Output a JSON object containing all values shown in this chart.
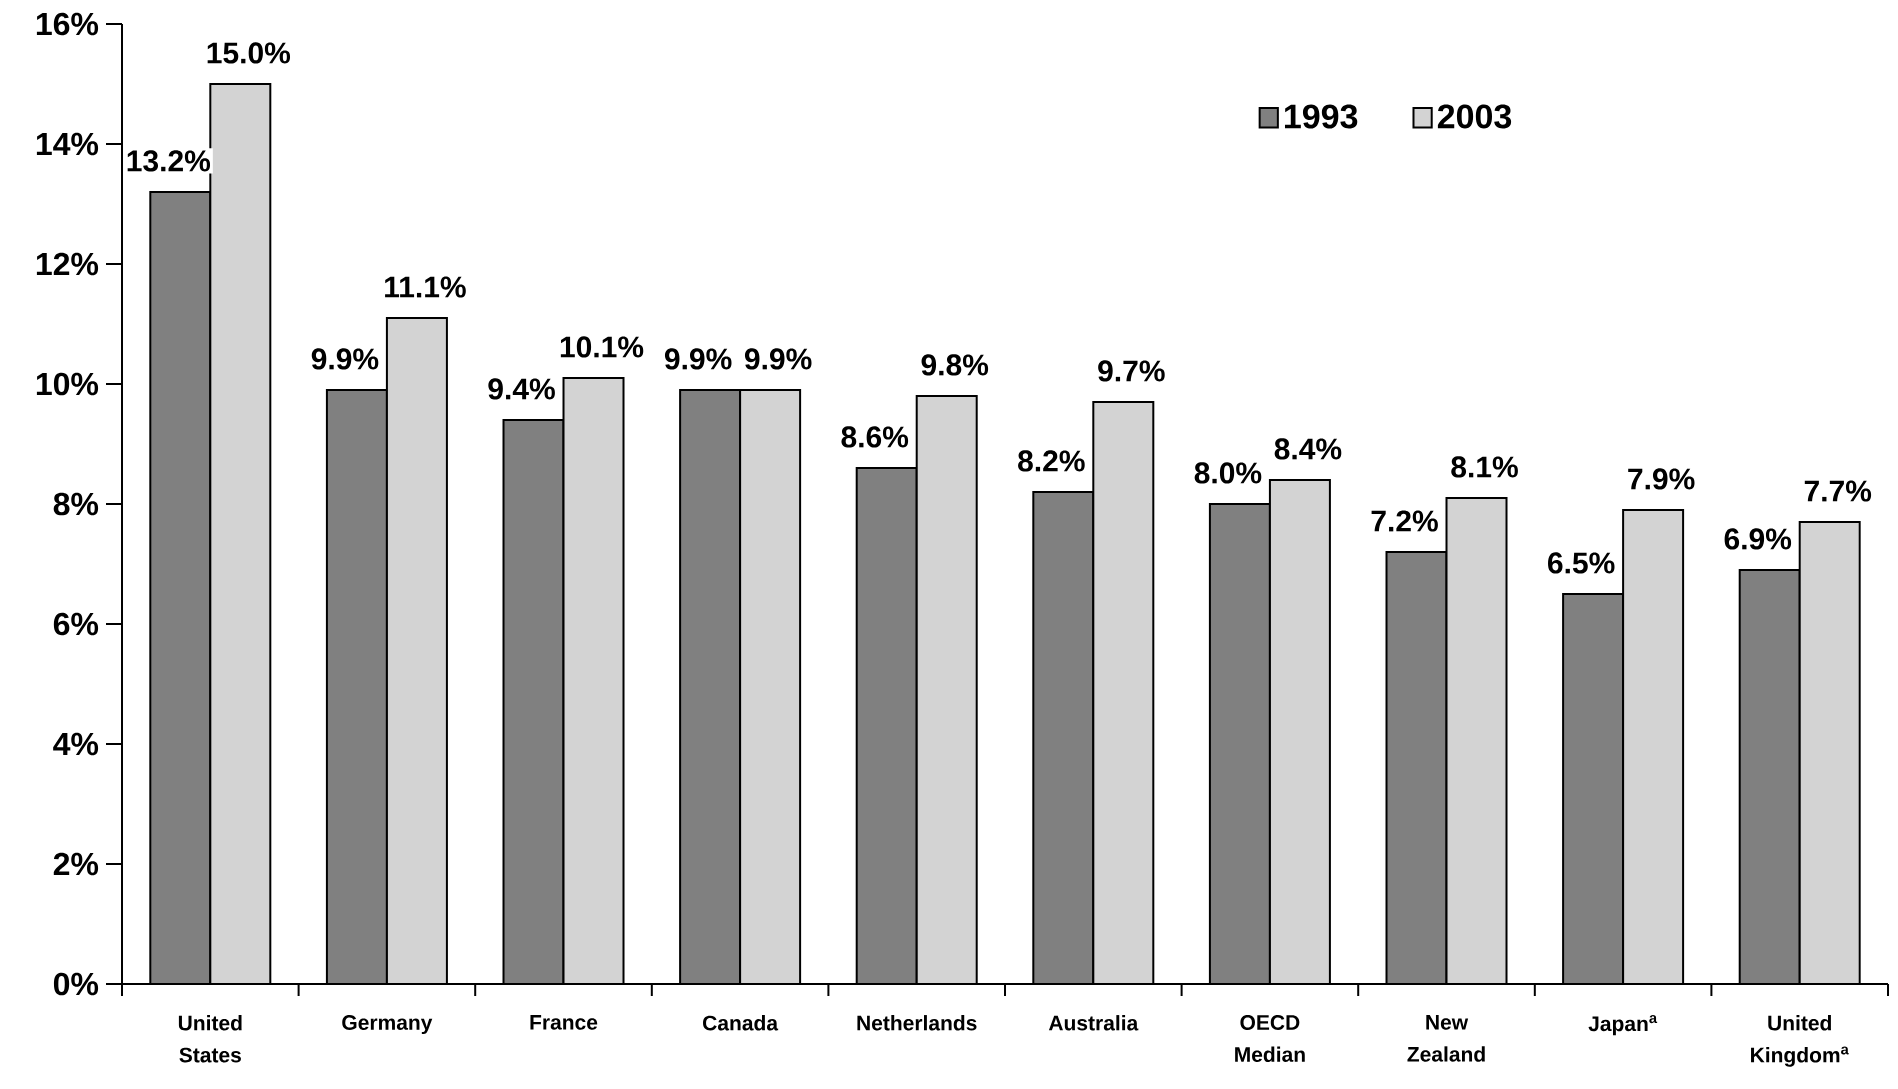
{
  "chart_data": {
    "type": "bar",
    "categories": [
      "United States",
      "Germany",
      "France",
      "Canada",
      "Netherlands",
      "Australia",
      "OECD Median",
      "New Zealand",
      "Japan$^{a}$",
      "United Kingdom$^{a}$"
    ],
    "series": [
      {
        "name": "1993",
        "color": "#808080",
        "values": [
          13.2,
          9.9,
          9.4,
          9.9,
          8.6,
          8.2,
          8.0,
          7.2,
          6.5,
          6.9
        ],
        "value_labels": [
          "13.2%",
          "9.9%",
          "9.4%",
          "9.9%",
          "8.6%",
          "8.2%",
          "8.0%",
          "7.2%",
          "6.5%",
          "6.9%"
        ]
      },
      {
        "name": "2003",
        "color": "#d3d3d3",
        "values": [
          15.0,
          11.1,
          10.1,
          9.9,
          9.8,
          9.7,
          8.4,
          8.1,
          7.9,
          7.7
        ],
        "value_labels": [
          "15.0%",
          "11.1%",
          "10.1%",
          "9.9%",
          "9.8%",
          "9.7%",
          "8.4%",
          "8.1%",
          "7.9%",
          "7.7%"
        ]
      }
    ],
    "ylim": [
      0,
      16
    ],
    "yticks": [
      {
        "value": 0,
        "label": "0%"
      },
      {
        "value": 2,
        "label": "2%"
      },
      {
        "value": 4,
        "label": "4%"
      },
      {
        "value": 6,
        "label": "6%"
      },
      {
        "value": 8,
        "label": "8%"
      },
      {
        "value": 10,
        "label": "10%"
      },
      {
        "value": 12,
        "label": "12%"
      },
      {
        "value": 14,
        "label": "14%"
      },
      {
        "value": 16,
        "label": "16%"
      }
    ],
    "grid": false,
    "legend": "top right"
  }
}
